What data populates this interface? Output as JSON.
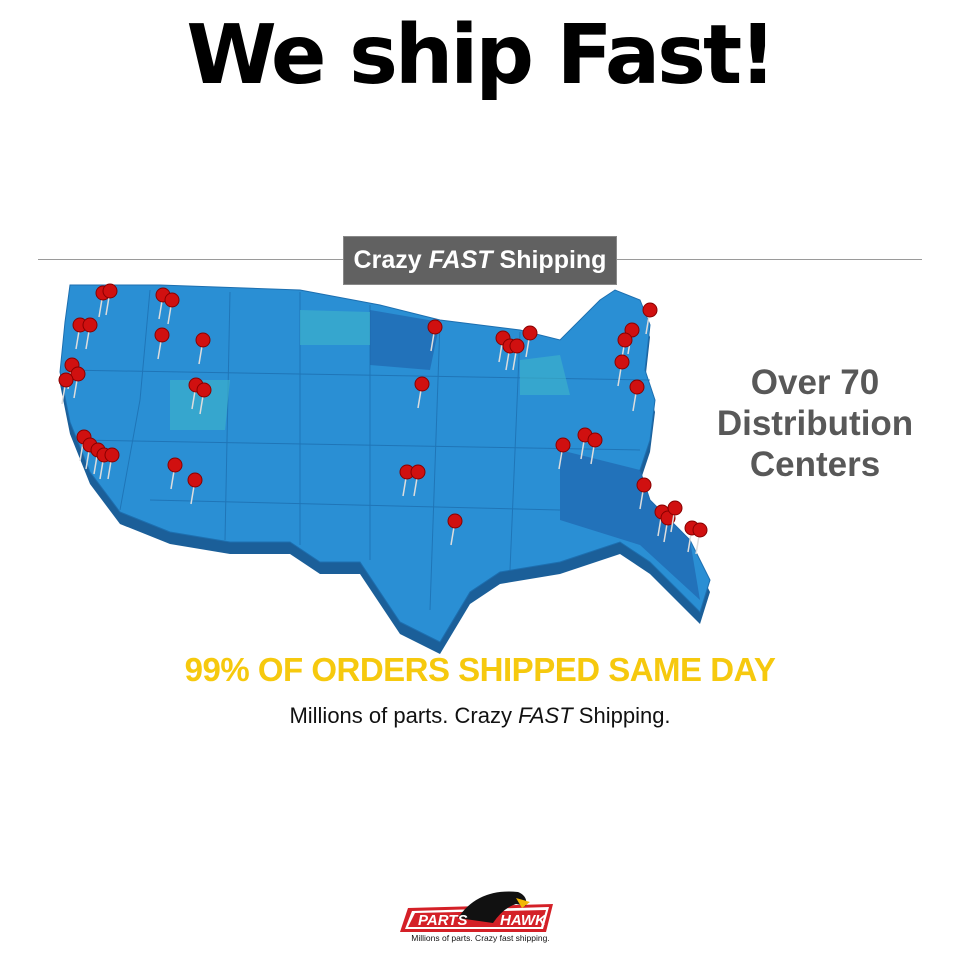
{
  "headline": "We ship Fast!",
  "banner": {
    "part1": "Crazy",
    "part2": "FAST",
    "part3": "Shipping"
  },
  "side_text": [
    "Over 70",
    "Distribution",
    "Centers"
  ],
  "promo": "99% OF ORDERS SHIPPED SAME DAY",
  "subline": {
    "part1": "Millions of parts. Crazy",
    "part2": "FAST",
    "part3": "Shipping."
  },
  "logo": {
    "word1": "PARTS",
    "word2": "HAWK",
    "tagline": "Millions of parts. Crazy fast shipping."
  },
  "colors": {
    "map_blue": "#2a8fd4",
    "pin_red": "#d01010",
    "promo_yellow": "#f6c90e",
    "banner_gray": "#616161",
    "logo_red": "#d42027"
  }
}
